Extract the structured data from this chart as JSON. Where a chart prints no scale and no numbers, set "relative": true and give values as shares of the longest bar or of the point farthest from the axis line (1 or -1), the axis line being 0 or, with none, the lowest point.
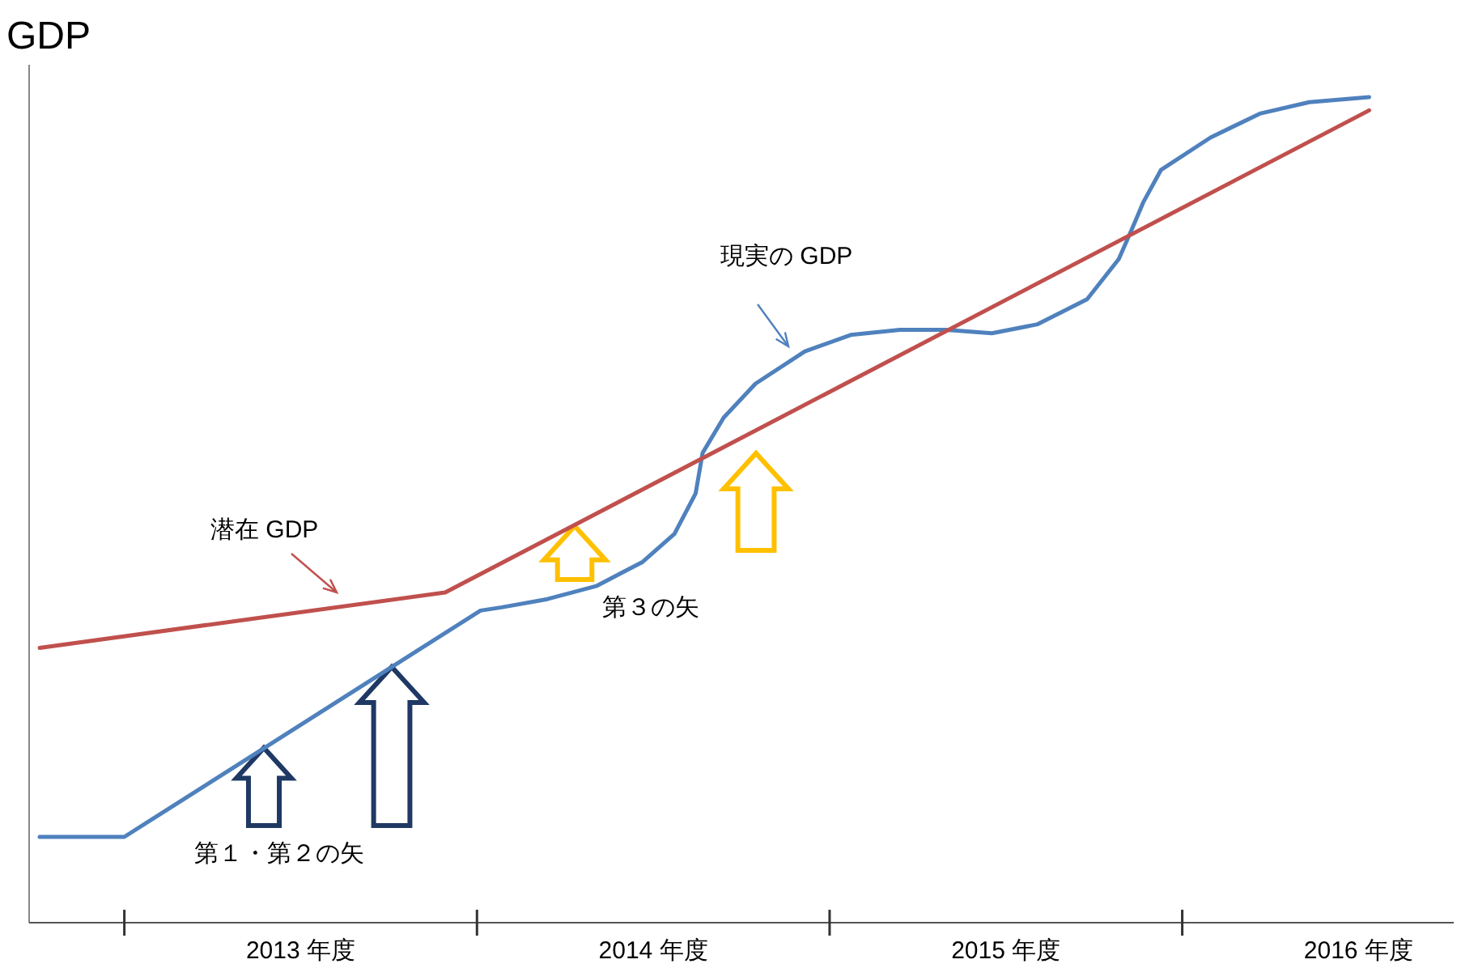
{
  "chart_data": {
    "type": "line",
    "ylabel": "GDP",
    "relative": true,
    "xlim": [
      2012.73,
      2016.77
    ],
    "xticks": [
      {
        "value": 2013,
        "label": null
      },
      {
        "value": 2013.5,
        "label": "2013 年度"
      },
      {
        "value": 2014,
        "label": null
      },
      {
        "value": 2014.5,
        "label": "2014 年度"
      },
      {
        "value": 2015,
        "label": null
      },
      {
        "value": 2015.5,
        "label": "2015 年度"
      },
      {
        "value": 2016,
        "label": null
      },
      {
        "value": 2016.5,
        "label": "2016 年度"
      }
    ],
    "grid": false,
    "marker": "none",
    "line_style": "solid",
    "series": [
      {
        "color": "#4f81bd",
        "x": [
          2012.76,
          2013.0,
          2014.01,
          2014.07,
          2014.2,
          2014.34,
          2014.47,
          2014.56,
          2014.62,
          2014.64,
          2014.7,
          2014.79,
          2014.93,
          2015.06,
          2015.2,
          2015.33,
          2015.46,
          2015.59,
          2015.73,
          2015.82,
          2015.86,
          2015.89,
          2015.94,
          2016.08,
          2016.22,
          2016.36,
          2016.53
        ],
        "values": [
          0.104,
          0.104,
          0.378,
          0.382,
          0.392,
          0.408,
          0.437,
          0.471,
          0.52,
          0.569,
          0.612,
          0.653,
          0.692,
          0.712,
          0.718,
          0.718,
          0.714,
          0.725,
          0.755,
          0.804,
          0.843,
          0.873,
          0.912,
          0.951,
          0.98,
          0.994,
          1.0
        ]
      },
      {
        "color": "#c0504d",
        "x": [
          2012.76,
          2013.91,
          2016.53
        ],
        "values": [
          0.333,
          0.4,
          0.984
        ]
      }
    ],
    "annotations": [
      "現実の GDP",
      "潜在 GDP",
      "第３の矢",
      "第１・第２の矢"
    ]
  }
}
